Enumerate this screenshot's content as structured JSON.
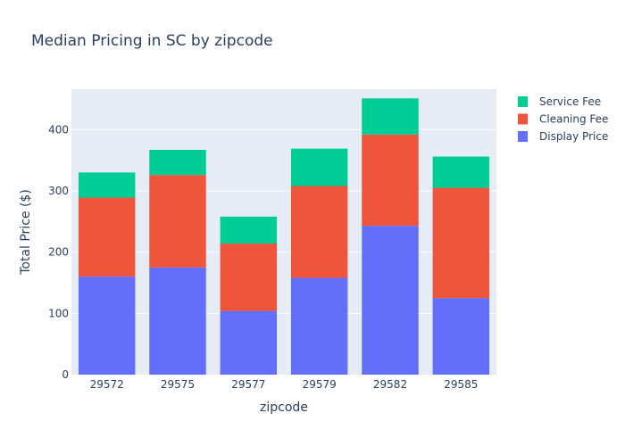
{
  "chart_data": {
    "type": "bar",
    "stacked": true,
    "title": "Median Pricing in SC by zipcode",
    "xlabel": "zipcode",
    "ylabel": "Total Price ($)",
    "categories": [
      "29572",
      "29575",
      "29577",
      "29579",
      "29582",
      "29585"
    ],
    "ylim": [
      0,
      466
    ],
    "yticks": [
      0,
      100,
      200,
      300,
      400
    ],
    "grid": true,
    "legend_position": "top-right",
    "series": [
      {
        "name": "Display Price",
        "color": "#636efa",
        "values": [
          160,
          175,
          104,
          158,
          243,
          125
        ]
      },
      {
        "name": "Cleaning Fee",
        "color": "#ef553b",
        "values": [
          129,
          151,
          110,
          150,
          149,
          180
        ]
      },
      {
        "name": "Service Fee",
        "color": "#00cc96",
        "values": [
          41,
          41,
          44,
          61,
          59,
          51
        ]
      }
    ]
  }
}
